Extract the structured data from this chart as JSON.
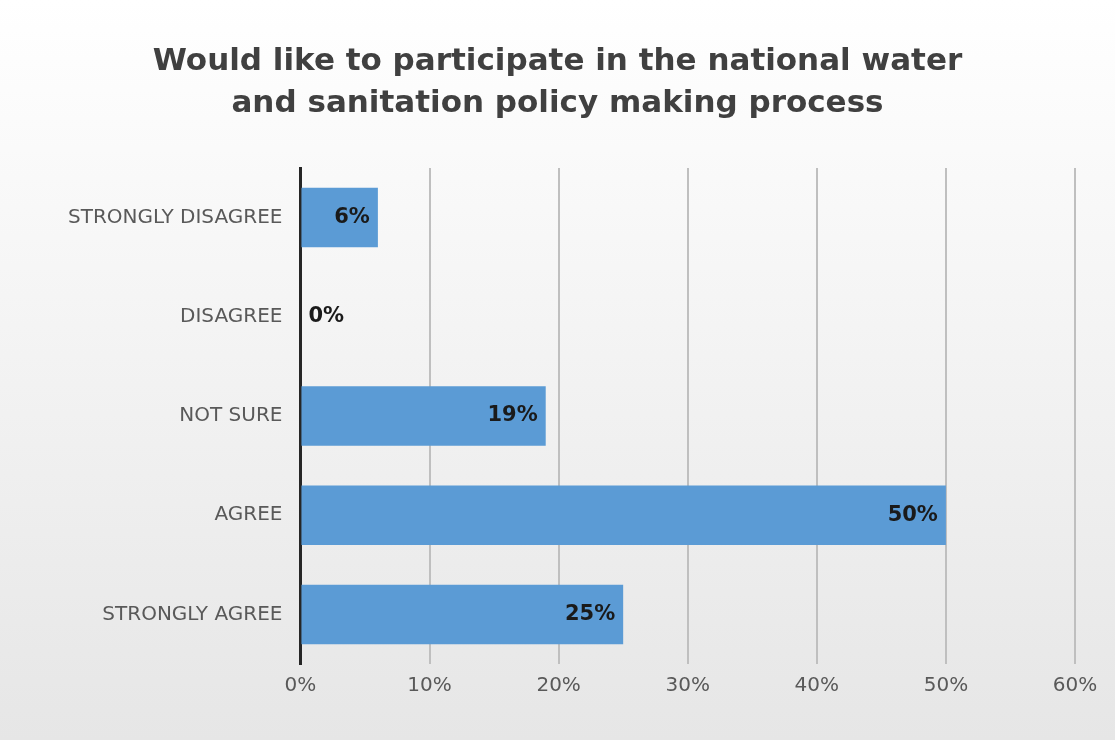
{
  "chart_data": {
    "type": "bar",
    "orientation": "horizontal",
    "title": "Would like to participate in the national water and sanitation policy making process",
    "categories": [
      "STRONGLY DISAGREE",
      "DISAGREE",
      "NOT SURE",
      "AGREE",
      "STRONGLY AGREE"
    ],
    "values": [
      6,
      0,
      19,
      50,
      25
    ],
    "value_labels": [
      "6%",
      "0%",
      "19%",
      "50%",
      "25%"
    ],
    "color": "#5b9bd5",
    "xlim": [
      0,
      60
    ],
    "xticks": [
      {
        "value": 0,
        "label": "0%"
      },
      {
        "value": 10,
        "label": "10%"
      },
      {
        "value": 20,
        "label": "20%"
      },
      {
        "value": 30,
        "label": "30%"
      },
      {
        "value": 40,
        "label": "40%"
      },
      {
        "value": 50,
        "label": "50%"
      },
      {
        "value": 60,
        "label": "60%"
      }
    ],
    "grid": "x"
  }
}
